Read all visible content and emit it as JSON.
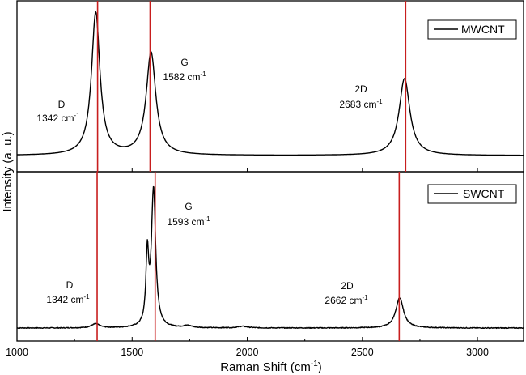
{
  "chart_data": {
    "type": "line",
    "xlabel": "Raman Shift (cm",
    "xlabel_sup": "-1",
    "xlabel_close": ")",
    "ylabel": "Intensity (a. u.)",
    "xlim": [
      1000,
      3200
    ],
    "xticks": [
      "1000",
      "1500",
      "2000",
      "2500",
      "3000"
    ],
    "xtick_values": [
      1000,
      1500,
      2000,
      2500,
      3000
    ],
    "panels": [
      {
        "name": "MWCNT",
        "legend": "MWCNT",
        "baseline": 0.04,
        "noise": false,
        "peaks": [
          {
            "label": "D",
            "position": 1342,
            "value_text": "1342 cm",
            "unit_sup": "-1",
            "height": 1.0,
            "width": 22
          },
          {
            "label": "G",
            "position": 1582,
            "value_text": "1582 cm",
            "unit_sup": "-1",
            "height": 0.72,
            "width": 25
          },
          {
            "label": "2D",
            "position": 2683,
            "value_text": "2683 cm",
            "unit_sup": "-1",
            "height": 0.54,
            "width": 28
          }
        ],
        "ref_lines": [
          1350,
          1578,
          2688
        ]
      },
      {
        "name": "SWCNT",
        "legend": "SWCNT",
        "baseline": 0.02,
        "noise": true,
        "peaks": [
          {
            "label": "D",
            "position": 1342,
            "value_text": "1342 cm",
            "unit_sup": "-1",
            "height": 0.03,
            "width": 20
          },
          {
            "label": "G",
            "position": 1593,
            "value_text": "1593 cm",
            "unit_sup": "-1",
            "height": 1.0,
            "width": 11
          },
          {
            "label": "2D",
            "position": 2662,
            "value_text": "2662 cm",
            "unit_sup": "-1",
            "height": 0.22,
            "width": 20
          }
        ],
        "shoulders": [
          {
            "position": 1566,
            "height": 0.5,
            "width": 7
          },
          {
            "position": 1740,
            "height": 0.018,
            "width": 18
          },
          {
            "position": 1980,
            "height": 0.012,
            "width": 25
          }
        ],
        "ref_lines": [
          1348,
          1600,
          2660
        ]
      }
    ]
  }
}
